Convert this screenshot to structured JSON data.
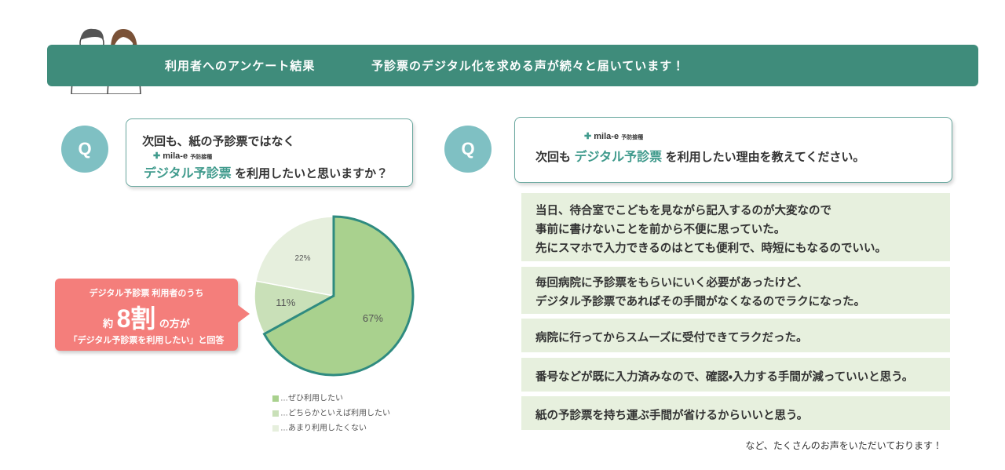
{
  "header": {
    "title": "利用者へのアンケート結果",
    "subtitle": "予診票のデジタル化を求める声が続々と届いています！"
  },
  "question1": {
    "badge": "Q",
    "line1": "次回も、紙の予診票ではなく",
    "logo": "mila-e",
    "logo_sub": "予防接種",
    "highlight": "デジタル予診票",
    "rest": "を利用したいと思いますか？"
  },
  "callout": {
    "line1": "デジタル予診票 利用者のうち",
    "prefix": "約",
    "big": "8割",
    "suffix": "の方が",
    "line3": "「デジタル予診票を利用したい」と回答"
  },
  "chart_data": {
    "type": "pie",
    "categories": [
      "…ぜひ利用したい",
      "…どちらかといえば利用したい",
      "…あまり利用したくない"
    ],
    "values": [
      67,
      11,
      22
    ],
    "value_labels": [
      "67%",
      "11%",
      "22%"
    ],
    "colors": [
      "#a9d18e",
      "#c9e0b8",
      "#e6efdd"
    ]
  },
  "question2": {
    "badge": "Q",
    "logo": "mila-e",
    "logo_sub": "予防接種",
    "prefix": "次回も",
    "highlight": "デジタル予診票",
    "rest": "を利用したい理由を教えてください。"
  },
  "answers": [
    [
      "当日、待合室でこどもを見ながら記入するのが大変なので",
      "事前に書けないことを前から不便に思っていた。",
      "先にスマホで入力できるのはとても便利で、時短にもなるのでいい。"
    ],
    [
      "毎回病院に予診票をもらいにいく必要があったけど、",
      "デジタル予診票であればその手間がなくなるのでラクになった。"
    ],
    [
      "病院に行ってからスムーズに受付できてラクだった。"
    ],
    [
      "番号などが既に入力済みなので、確認・入力する手間が減っていいと思う。"
    ],
    [
      "紙の予診票を持ち運ぶ手間が省けるからいいと思う。"
    ]
  ],
  "footer": "など、たくさんのお声をいただいております！"
}
